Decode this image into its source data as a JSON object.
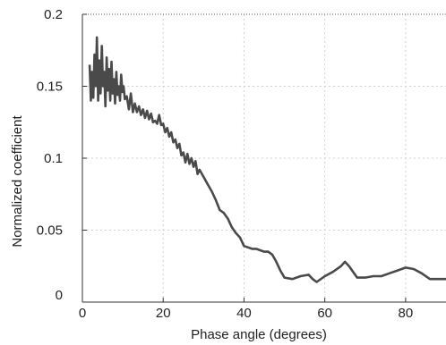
{
  "chart_data": {
    "type": "line",
    "title": "",
    "xlabel": "Phase angle (degrees)",
    "ylabel": "Normalized coefficient",
    "xlim": [
      0,
      90
    ],
    "ylim": [
      0,
      0.2
    ],
    "x_ticks": [
      0,
      20,
      40,
      60,
      80
    ],
    "x_tick_labels": [
      "0",
      "20",
      "40",
      "60",
      "80"
    ],
    "y_ticks": [
      0,
      0.05,
      0.1,
      0.15,
      0.2
    ],
    "y_tick_labels": [
      "0",
      "0.05",
      "0.1",
      "0.15",
      "0.2"
    ],
    "grid": true,
    "series": [
      {
        "color": "#4a4a4a",
        "x": [
          1.8,
          2.1,
          2.4,
          2.7,
          3.0,
          3.3,
          3.6,
          3.9,
          4.2,
          4.5,
          4.8,
          5.1,
          5.4,
          5.7,
          6.0,
          6.3,
          6.6,
          6.9,
          7.2,
          7.5,
          7.8,
          8.1,
          8.4,
          8.7,
          9.0,
          9.3,
          9.6,
          9.9,
          10.2,
          10.5,
          11.0,
          11.5,
          12.0,
          12.5,
          13.0,
          13.5,
          14.0,
          14.5,
          15.0,
          15.5,
          16.0,
          16.5,
          17.0,
          17.5,
          18.0,
          18.5,
          19.0,
          19.5,
          20.0,
          20.5,
          21.0,
          21.5,
          22.0,
          22.5,
          23.0,
          23.5,
          24.0,
          24.5,
          25.0,
          25.5,
          26.0,
          26.5,
          27.0,
          27.5,
          28.0,
          28.5,
          29.0,
          30.0,
          31.0,
          32.0,
          33.0,
          34.0,
          35.0,
          36.0,
          37.0,
          38.0,
          39.0,
          40.0,
          41.0,
          42.0,
          43.0,
          44.0,
          45.0,
          46.0,
          47.0,
          48.0,
          49.0,
          50.0,
          52.0,
          54.0,
          56.0,
          57.0,
          58.0,
          60.0,
          62.0,
          64.0,
          65.0,
          66.0,
          68.0,
          70.0,
          72.0,
          74.0,
          76.0,
          78.0,
          80.0,
          82.0,
          84.0,
          86.0,
          88.0,
          90.0
        ],
        "y": [
          0.165,
          0.14,
          0.16,
          0.142,
          0.172,
          0.15,
          0.184,
          0.14,
          0.168,
          0.145,
          0.178,
          0.15,
          0.16,
          0.136,
          0.17,
          0.147,
          0.162,
          0.14,
          0.167,
          0.145,
          0.155,
          0.138,
          0.16,
          0.144,
          0.15,
          0.14,
          0.158,
          0.146,
          0.15,
          0.141,
          0.143,
          0.134,
          0.145,
          0.132,
          0.138,
          0.132,
          0.136,
          0.13,
          0.134,
          0.128,
          0.133,
          0.127,
          0.131,
          0.125,
          0.126,
          0.124,
          0.13,
          0.123,
          0.124,
          0.118,
          0.121,
          0.115,
          0.118,
          0.111,
          0.113,
          0.107,
          0.11,
          0.102,
          0.104,
          0.097,
          0.103,
          0.096,
          0.1,
          0.094,
          0.098,
          0.089,
          0.092,
          0.087,
          0.082,
          0.077,
          0.071,
          0.064,
          0.062,
          0.058,
          0.052,
          0.048,
          0.045,
          0.039,
          0.038,
          0.037,
          0.037,
          0.036,
          0.035,
          0.035,
          0.033,
          0.028,
          0.022,
          0.017,
          0.016,
          0.018,
          0.019,
          0.016,
          0.014,
          0.018,
          0.021,
          0.025,
          0.028,
          0.025,
          0.017,
          0.017,
          0.018,
          0.018,
          0.02,
          0.022,
          0.024,
          0.023,
          0.02,
          0.016,
          0.016,
          0.016
        ]
      }
    ]
  }
}
